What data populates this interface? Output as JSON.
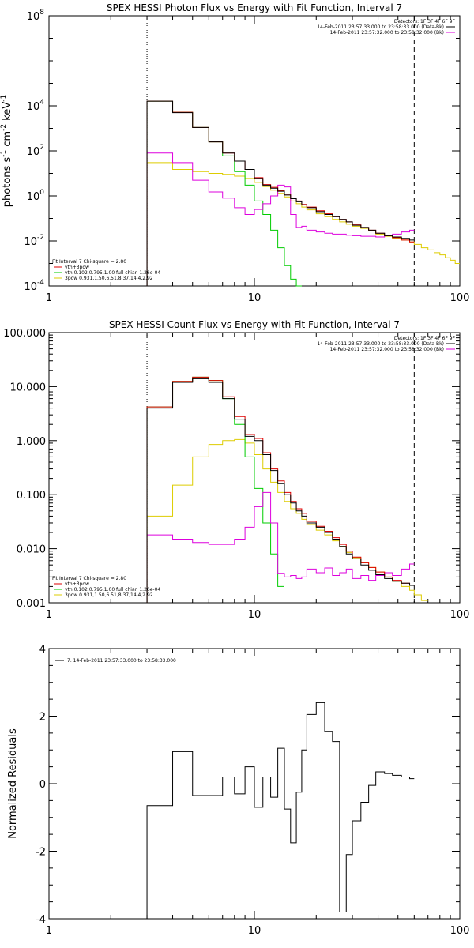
{
  "chart_data": [
    {
      "type": "line",
      "title": "SPEX HESSI Photon Flux vs Energy with Fit Function, Interval 7",
      "ylabel_parts": [
        "photons s",
        "-1",
        " cm",
        "-2",
        " keV",
        "-1"
      ],
      "xscale": "log",
      "yscale": "log",
      "xlim": [
        1,
        100
      ],
      "ylim": [
        0.0001,
        100000000
      ],
      "xticks": [
        1,
        10,
        100
      ],
      "xtick_labels": [
        "1",
        "10",
        "100"
      ],
      "yticks": [
        0.0001,
        0.01,
        1,
        100,
        10000,
        100000000
      ],
      "ytick_labels": [
        {
          "base": "10",
          "exp": "-4"
        },
        {
          "base": "10",
          "exp": "-2"
        },
        {
          "base": "10",
          "exp": "0"
        },
        {
          "base": "10",
          "exp": "2"
        },
        {
          "base": "10",
          "exp": "4"
        },
        {
          "base": "10",
          "exp": "8"
        }
      ],
      "vlines": [
        {
          "x": 3,
          "style": "dotted"
        },
        {
          "x": 60,
          "style": "dashed"
        }
      ],
      "legend_top_right": [
        {
          "text": "Detectors: 1F 3F 4F 6F 9F",
          "color": ""
        },
        {
          "text": "14-Feb-2011 23:57:33.000 to 23:58:33.000 (Data-Bk)",
          "color": "#000000"
        },
        {
          "text": "14-Feb-2011 23:57:32.000 to 23:58:32.000 (Bk)",
          "color": "#dd00dd"
        }
      ],
      "legend_bottom_left": [
        {
          "text": "Fit Interval  7   Chi-square = 2.80",
          "color": ""
        },
        {
          "text": "vth+3pow",
          "color": "#dd0000"
        },
        {
          "text": "vth 0.102,0.795,1.00  full chian 1.26e-04",
          "color": "#00cc00"
        },
        {
          "text": "3pow 0.931,1.50,6.51,8.37,14.4,2.92",
          "color": "#ddcc00"
        }
      ],
      "edges": [
        3,
        4,
        5,
        6,
        7,
        8,
        9,
        10,
        11,
        12,
        13,
        14,
        15,
        16,
        17,
        18,
        20,
        22,
        24,
        26,
        28,
        30,
        33,
        36,
        39,
        43,
        47,
        52,
        57,
        60,
        65,
        70,
        75,
        80,
        85,
        90,
        95,
        100
      ],
      "series": [
        {
          "name": "Data-Bk",
          "color": "#000000",
          "x_end": 60,
          "values": [
            16000,
            5000,
            1100,
            250,
            80,
            35,
            15,
            6,
            3,
            2.2,
            1.6,
            1.1,
            0.75,
            0.55,
            0.4,
            0.3,
            0.2,
            0.15,
            0.12,
            0.09,
            0.07,
            0.05,
            0.04,
            0.03,
            0.022,
            0.017,
            0.015,
            0.013,
            0.011
          ]
        },
        {
          "name": "vth+3pow",
          "color": "#dd0000",
          "x_end": 60,
          "values": [
            16000,
            5200,
            1100,
            250,
            80,
            35,
            15,
            6.5,
            3.2,
            2.4,
            1.7,
            1.2,
            0.8,
            0.6,
            0.42,
            0.32,
            0.22,
            0.16,
            0.12,
            0.09,
            0.07,
            0.052,
            0.04,
            0.03,
            0.022,
            0.017,
            0.014,
            0.011,
            0.009
          ]
        },
        {
          "name": "vth",
          "color": "#00cc00",
          "x_end": 17,
          "values": [
            16000,
            5200,
            1100,
            250,
            60,
            12,
            3,
            0.6,
            0.15,
            0.03,
            0.005,
            0.0008,
            0.0002,
            5e-05
          ]
        },
        {
          "name": "3pow",
          "color": "#ddcc00",
          "x_end": 100,
          "values": [
            30,
            15,
            12,
            10,
            9,
            7.5,
            6,
            4,
            2.6,
            1.8,
            1.3,
            0.9,
            0.6,
            0.45,
            0.32,
            0.24,
            0.16,
            0.12,
            0.09,
            0.07,
            0.055,
            0.045,
            0.036,
            0.028,
            0.02,
            0.016,
            0.013,
            0.011,
            0.009,
            0.007,
            0.005,
            0.004,
            0.003,
            0.0024,
            0.0018,
            0.0014,
            0.001
          ]
        },
        {
          "name": "Bk",
          "color": "#dd00dd",
          "x_end": 60,
          "values": [
            80,
            30,
            5,
            1.5,
            0.8,
            0.3,
            0.15,
            0.25,
            0.45,
            1,
            3,
            2.5,
            0.15,
            0.04,
            0.045,
            0.03,
            0.025,
            0.022,
            0.02,
            0.02,
            0.018,
            0.017,
            0.016,
            0.016,
            0.015,
            0.017,
            0.02,
            0.025,
            0.03
          ]
        }
      ]
    },
    {
      "type": "line",
      "title": "SPEX HESSI Count Flux vs Energy with Fit Function, Interval 7",
      "ylabel_parts": [],
      "xscale": "log",
      "yscale": "log",
      "xlim": [
        1,
        100
      ],
      "ylim": [
        0.001,
        100
      ],
      "xticks": [
        1,
        10,
        100
      ],
      "xtick_labels": [
        "1",
        "10",
        "100"
      ],
      "yticks": [
        0.001,
        0.01,
        0.1,
        1,
        10,
        100
      ],
      "ytick_labels": [
        "0.001",
        "0.010",
        "0.100",
        "1.000",
        "10.000",
        "100.000"
      ],
      "vlines": [
        {
          "x": 3,
          "style": "dotted"
        },
        {
          "x": 60,
          "style": "dashed"
        }
      ],
      "legend_top_right": [
        {
          "text": "Detectors: 1F 3F 4F 6F 9F",
          "color": ""
        },
        {
          "text": "14-Feb-2011 23:57:33.000 to 23:58:33.000 (Data-Bk)",
          "color": "#000000"
        },
        {
          "text": "14-Feb-2011 23:57:32.000 to 23:58:32.000 (Bk)",
          "color": "#dd00dd"
        }
      ],
      "legend_bottom_left": [
        {
          "text": "Fit Interval  7   Chi-square = 2.80",
          "color": ""
        },
        {
          "text": "vth+3pow",
          "color": "#dd0000"
        },
        {
          "text": "vth 0.102,0.795,1.00  full chian 1.26e-04",
          "color": "#00cc00"
        },
        {
          "text": "3pow 0.931,1.50,6.51,8.37,14.4,2.92",
          "color": "#ddcc00"
        }
      ],
      "edges": [
        3,
        4,
        5,
        6,
        7,
        8,
        9,
        10,
        11,
        12,
        13,
        14,
        15,
        16,
        17,
        18,
        20,
        22,
        24,
        26,
        28,
        30,
        33,
        36,
        39,
        43,
        47,
        52,
        57,
        60,
        65,
        70
      ],
      "series": [
        {
          "name": "Data-Bk",
          "color": "#000000",
          "x_end": 60,
          "values": [
            4,
            12,
            14,
            12,
            6,
            2.5,
            1.2,
            1.0,
            0.55,
            0.28,
            0.16,
            0.1,
            0.07,
            0.05,
            0.04,
            0.03,
            0.025,
            0.02,
            0.015,
            0.011,
            0.008,
            0.0065,
            0.005,
            0.004,
            0.0033,
            0.0028,
            0.0025,
            0.0023,
            0.0021
          ]
        },
        {
          "name": "vth+3pow",
          "color": "#dd0000",
          "x_end": 60,
          "values": [
            4.2,
            12.5,
            15,
            13,
            6.5,
            2.8,
            1.3,
            1.1,
            0.6,
            0.3,
            0.18,
            0.11,
            0.075,
            0.055,
            0.045,
            0.032,
            0.026,
            0.021,
            0.016,
            0.012,
            0.009,
            0.007,
            0.0055,
            0.0045,
            0.0037,
            0.003,
            0.0026,
            0.0023,
            0.0021
          ]
        },
        {
          "name": "vth",
          "color": "#00cc00",
          "x_end": 14,
          "values": [
            4.2,
            12.5,
            15,
            13,
            6,
            2,
            0.5,
            0.13,
            0.03,
            0.008,
            0.002
          ]
        },
        {
          "name": "3pow",
          "color": "#ddcc00",
          "x_end": 70,
          "values": [
            0.04,
            0.15,
            0.5,
            0.85,
            1.0,
            1.05,
            0.9,
            0.55,
            0.3,
            0.17,
            0.11,
            0.075,
            0.055,
            0.045,
            0.035,
            0.028,
            0.022,
            0.018,
            0.014,
            0.011,
            0.0085,
            0.0068,
            0.0055,
            0.0045,
            0.0037,
            0.003,
            0.0025,
            0.002,
            0.0017,
            0.0014,
            0.0011
          ]
        },
        {
          "name": "Bk",
          "color": "#dd00dd",
          "x_end": 60,
          "values": [
            0.018,
            0.015,
            0.013,
            0.012,
            0.012,
            0.015,
            0.025,
            0.06,
            0.11,
            0.03,
            0.0035,
            0.003,
            0.0032,
            0.0028,
            0.003,
            0.0042,
            0.0036,
            0.0044,
            0.0032,
            0.0036,
            0.0042,
            0.0028,
            0.0032,
            0.0026,
            0.0032,
            0.0036,
            0.0032,
            0.0042,
            0.0052
          ]
        }
      ]
    },
    {
      "type": "line",
      "title": "",
      "ylabel": "Normalized Residuals",
      "xscale": "log",
      "yscale": "linear",
      "xlim": [
        1,
        100
      ],
      "ylim": [
        -4,
        4
      ],
      "xticks": [
        1,
        10,
        100
      ],
      "xtick_labels": [
        "1",
        "10",
        "100"
      ],
      "yticks": [
        -4,
        -2,
        0,
        2,
        4
      ],
      "ytick_labels": [
        "-4",
        "-2",
        "0",
        "2",
        "4"
      ],
      "legend_top_left": [
        {
          "text": "7. 14-Feb-2011 23:57:33.000 to 23:58:33.000",
          "color": "#000000"
        }
      ],
      "edges": [
        3,
        4,
        5,
        6,
        7,
        8,
        9,
        10,
        11,
        12,
        13,
        14,
        15,
        16,
        17,
        18,
        20,
        22,
        24,
        26,
        28,
        30,
        33,
        36,
        39,
        43,
        47,
        52,
        57,
        60
      ],
      "series": [
        {
          "name": "7",
          "color": "#000000",
          "x_end": 60,
          "values": [
            -0.65,
            0.95,
            -0.35,
            -0.35,
            0.2,
            -0.3,
            0.5,
            -0.7,
            0.2,
            -0.4,
            1.05,
            -0.75,
            -1.75,
            -0.25,
            1.0,
            2.05,
            2.4,
            1.55,
            1.25,
            -3.8,
            -2.1,
            -1.1,
            -0.55,
            -0.05,
            0.35,
            0.3,
            0.25,
            0.2,
            0.15
          ]
        }
      ]
    }
  ]
}
